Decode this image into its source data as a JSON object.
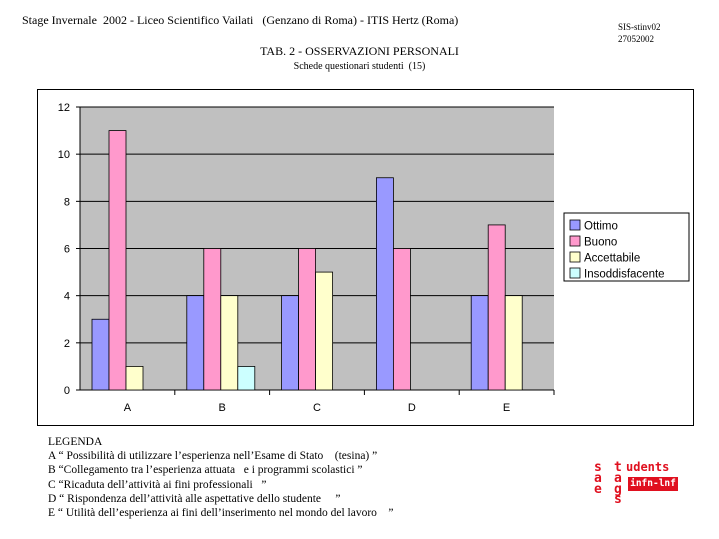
{
  "header": {
    "line": "Stage Invernale  2002 - Liceo Scientifico Vailati   (Genzano di Roma) - ITIS Hertz (Roma)",
    "code_line1": "SIS-stinv02",
    "code_line2": "27052002"
  },
  "title": "TAB. 2 - OSSERVAZIONI PERSONALI",
  "subtitle": "Schede questionari studenti  (15)",
  "chart_data": {
    "type": "bar",
    "categories": [
      "A",
      "B",
      "C",
      "D",
      "E"
    ],
    "series": [
      {
        "name": "Ottimo",
        "color": "#9999ff",
        "values": [
          3,
          4,
          4,
          9,
          4
        ]
      },
      {
        "name": "Buono",
        "color": "#ff99cc",
        "values": [
          11,
          6,
          6,
          6,
          7
        ]
      },
      {
        "name": "Accettabile",
        "color": "#ffffcc",
        "values": [
          1,
          4,
          5,
          0,
          4
        ]
      },
      {
        "name": "Insoddisfacente",
        "color": "#ccffff",
        "values": [
          0,
          1,
          0,
          0,
          0
        ]
      }
    ],
    "ylim": [
      0,
      12
    ],
    "yticks": [
      "0",
      "2",
      "4",
      "6",
      "8",
      "10",
      "12"
    ],
    "grid": true,
    "legend_position": "right",
    "plot_background": "#c0c0c0"
  },
  "legenda": {
    "heading": "LEGENDA",
    "items": [
      "A “ Possibilità di utilizzare l’esperienza nell’Esame di Stato    (tesina) ”",
      "B “Collegamento tra l’esperienza attuata   e i programmi scolastici ”",
      "C “Ricaduta dell’attività ai fini professionali   ”",
      "D “ Rispondenza dell’attività alle aspettative dello studente     ”",
      "E “ Utilità dell’esperienza ai fini dell’inserimento nel mondo del lavoro    ”"
    ]
  },
  "logo": {
    "text": "students sages infn-lnf",
    "box_label": "infn-lnf",
    "color": "#e0101f"
  }
}
